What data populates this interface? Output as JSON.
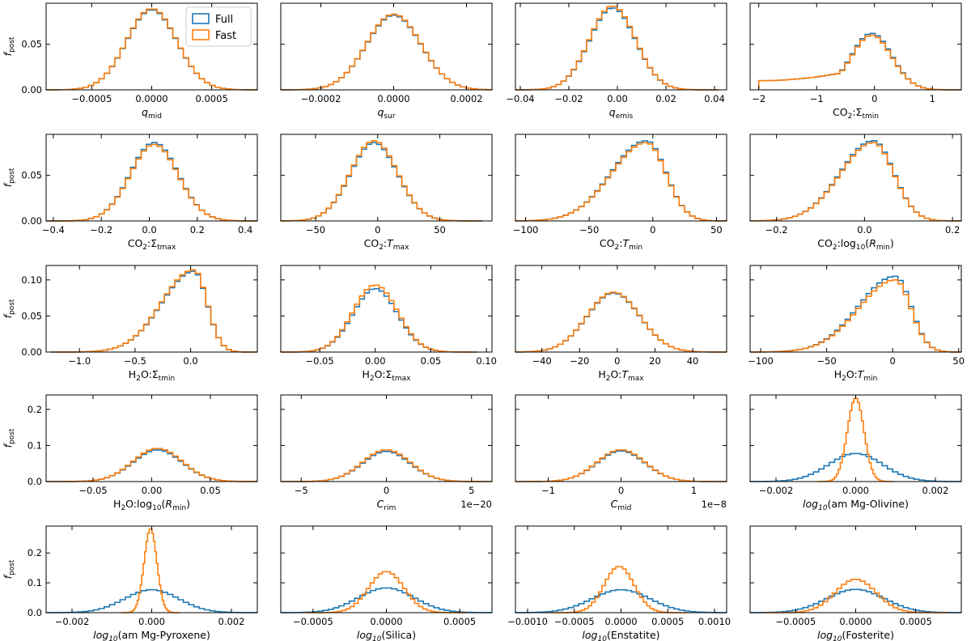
{
  "chart_data": {
    "type": "histogram-grid",
    "title": "",
    "ylabel": "f",
    "ylabel_sub": "post",
    "legend": {
      "placement": "top-right of first panel",
      "entries": [
        {
          "name": "Full",
          "color": "#1f77b4"
        },
        {
          "name": "Fast",
          "color": "#ff7f0e"
        }
      ]
    },
    "series_colors": {
      "Full": "#1f77b4",
      "Fast": "#ff7f0e"
    },
    "panels": [
      {
        "id": "qmid",
        "xlabel": {
          "base": "q",
          "italic": true,
          "sub": "mid"
        },
        "xlim": [
          -0.00088,
          0.00088
        ],
        "ylim": [
          0,
          0.095
        ],
        "xticks": [
          -0.0005,
          0,
          0.0005
        ],
        "xtick_labels": [
          "−0.0005",
          "0.0000",
          "0.0005"
        ],
        "yticks": [
          0,
          0.05
        ],
        "ytick_labels": [
          "0.00",
          "0.05"
        ],
        "series": {
          "Full": {
            "center": 0,
            "sigma": 0.00021,
            "peak": 0.088
          },
          "Fast": {
            "center": 0,
            "sigma": 0.00021,
            "peak": 0.089
          }
        }
      },
      {
        "id": "qsur",
        "xlabel": {
          "base": "q",
          "italic": true,
          "sub": "sur"
        },
        "xlim": [
          -0.00031,
          0.00027
        ],
        "ylim": [
          0,
          0.095
        ],
        "xticks": [
          -0.0002,
          0,
          0.0002
        ],
        "xtick_labels": [
          "−0.0002",
          "0.0000",
          "0.0002"
        ],
        "yticks": [],
        "ytick_labels": [],
        "series": {
          "Full": {
            "center": 0,
            "sigma": 7.5e-05,
            "peak": 0.082
          },
          "Fast": {
            "center": 0,
            "sigma": 7.5e-05,
            "peak": 0.083
          }
        }
      },
      {
        "id": "qemis",
        "xlabel": {
          "base": "q",
          "italic": true,
          "sub": "emis"
        },
        "xlim": [
          -0.042,
          0.045
        ],
        "ylim": [
          0,
          0.095
        ],
        "xticks": [
          -0.04,
          -0.02,
          0,
          0.02,
          0.04
        ],
        "xtick_labels": [
          "−0.04",
          "−0.02",
          "0.00",
          "0.02",
          "0.04"
        ],
        "yticks": [],
        "ytick_labels": [],
        "series": {
          "Full": {
            "center": -0.002,
            "sigma": 0.0095,
            "peak": 0.09
          },
          "Fast": {
            "center": -0.002,
            "sigma": 0.0095,
            "peak": 0.092
          }
        }
      },
      {
        "id": "co2_smin",
        "xlabel": {
          "base": "CO",
          "base_sub": "2",
          "rest": ":Σ",
          "sub": "tmin"
        },
        "xlim": [
          -2.15,
          1.5
        ],
        "ylim": [
          0,
          0.095
        ],
        "xticks": [
          -2,
          -1,
          0,
          1
        ],
        "xtick_labels": [
          "−2",
          "−1",
          "0",
          "1"
        ],
        "yticks": [],
        "ytick_labels": [],
        "series": {
          "Full": {
            "center": -0.05,
            "sigma": 0.35,
            "peak": 0.062,
            "floor": 0.01
          },
          "Fast": {
            "center": -0.05,
            "sigma": 0.35,
            "peak": 0.06,
            "floor": 0.01
          }
        }
      },
      {
        "id": "co2_smax",
        "xlabel": {
          "base": "CO",
          "base_sub": "2",
          "rest": ":Σ",
          "sub": "tmax"
        },
        "xlim": [
          -0.43,
          0.45
        ],
        "ylim": [
          0,
          0.095
        ],
        "xticks": [
          -0.4,
          -0.2,
          0,
          0.2,
          0.4
        ],
        "xtick_labels": [
          "−0.4",
          "−0.2",
          "0.0",
          "0.2",
          "0.4"
        ],
        "yticks": [
          0,
          0.05
        ],
        "ytick_labels": [
          "0.00",
          "0.05"
        ],
        "series": {
          "Full": {
            "center": 0.02,
            "sigma": 0.1,
            "peak": 0.086
          },
          "Fast": {
            "center": 0.02,
            "sigma": 0.1,
            "peak": 0.084
          }
        }
      },
      {
        "id": "co2_tmax",
        "xlabel": {
          "base": "CO",
          "base_sub": "2",
          "rest": ":",
          "rest_italic": "T",
          "sub": "max"
        },
        "xlim": [
          -78,
          92
        ],
        "ylim": [
          0,
          0.095
        ],
        "xticks": [
          -50,
          0,
          50
        ],
        "xtick_labels": [
          "−50",
          "0",
          "50"
        ],
        "yticks": [],
        "ytick_labels": [],
        "series": {
          "Full": {
            "center": -3,
            "sigma": 19,
            "peak": 0.086
          },
          "Fast": {
            "center": -3,
            "sigma": 19,
            "peak": 0.088
          }
        }
      },
      {
        "id": "co2_tmin",
        "xlabel": {
          "base": "CO",
          "base_sub": "2",
          "rest": ":",
          "rest_italic": "T",
          "sub": "min"
        },
        "xlim": [
          -108,
          58
        ],
        "ylim": [
          0,
          0.095
        ],
        "xticks": [
          -100,
          -50,
          0,
          50
        ],
        "xtick_labels": [
          "−100",
          "−50",
          "0",
          "50"
        ],
        "yticks": [],
        "ytick_labels": [],
        "series": {
          "Full": {
            "center": -5,
            "sigma": 18,
            "peak": 0.088,
            "skew": -0.6
          },
          "Fast": {
            "center": -5,
            "sigma": 18,
            "peak": 0.086,
            "skew": -0.6
          }
        }
      },
      {
        "id": "co2_rmin",
        "xlabel": {
          "base": "CO",
          "base_sub": "2",
          "rest": ":log",
          "rest_sub": "10",
          "rest2": "(",
          "rest2_italic": "R",
          "sub": "min",
          "tail": ")"
        },
        "xlim": [
          -0.26,
          0.22
        ],
        "ylim": [
          0,
          0.095
        ],
        "xticks": [
          -0.2,
          0,
          0.2
        ],
        "xtick_labels": [
          "−0.2",
          "0.0",
          "0.2"
        ],
        "yticks": [],
        "ytick_labels": [],
        "series": {
          "Full": {
            "center": 0.02,
            "sigma": 0.055,
            "peak": 0.088,
            "skew": -0.4
          },
          "Fast": {
            "center": 0.02,
            "sigma": 0.055,
            "peak": 0.086,
            "skew": -0.4
          }
        }
      },
      {
        "id": "h2o_smin",
        "xlabel": {
          "base": "H",
          "base_sub": "2",
          "base2": "O",
          "rest": ":Σ",
          "sub": "tmin"
        },
        "xlim": [
          -1.3,
          0.6
        ],
        "ylim": [
          0,
          0.12
        ],
        "xticks": [
          -1,
          -0.5,
          0
        ],
        "xtick_labels": [
          "−1.0",
          "−0.5",
          "0.0"
        ],
        "yticks": [
          0,
          0.05,
          0.1
        ],
        "ytick_labels": [
          "0.00",
          "0.05",
          "0.10"
        ],
        "series": {
          "Full": {
            "center": 0.03,
            "sigma": 0.14,
            "peak": 0.112,
            "skew": -1.2
          },
          "Fast": {
            "center": 0.03,
            "sigma": 0.14,
            "peak": 0.114,
            "skew": -1.2
          }
        }
      },
      {
        "id": "h2o_smax",
        "xlabel": {
          "base": "H",
          "base_sub": "2",
          "base2": "O",
          "rest": ":Σ",
          "sub": "tmax"
        },
        "xlim": [
          -0.085,
          0.105
        ],
        "ylim": [
          0,
          0.12
        ],
        "xticks": [
          -0.05,
          0,
          0.05,
          0.1
        ],
        "xtick_labels": [
          "−0.05",
          "0.00",
          "0.05",
          "0.10"
        ],
        "yticks": [],
        "ytick_labels": [],
        "series": {
          "Full": {
            "center": 0,
            "sigma": 0.02,
            "peak": 0.088
          },
          "Fast": {
            "center": 0,
            "sigma": 0.02,
            "peak": 0.093
          }
        }
      },
      {
        "id": "h2o_tmax",
        "xlabel": {
          "base": "H",
          "base_sub": "2",
          "base2": "O",
          "rest": ":",
          "rest_italic": "T",
          "sub": "max"
        },
        "xlim": [
          -54,
          58
        ],
        "ylim": [
          0,
          0.12
        ],
        "xticks": [
          -40,
          -20,
          0,
          20,
          40
        ],
        "xtick_labels": [
          "−40",
          "−20",
          "0",
          "20",
          "40"
        ],
        "yticks": [],
        "ytick_labels": [],
        "series": {
          "Full": {
            "center": -2,
            "sigma": 14,
            "peak": 0.082
          },
          "Fast": {
            "center": -2,
            "sigma": 14,
            "peak": 0.083
          }
        }
      },
      {
        "id": "h2o_tmin",
        "xlabel": {
          "base": "H",
          "base_sub": "2",
          "base2": "O",
          "rest": ":",
          "rest_italic": "T",
          "sub": "min"
        },
        "xlim": [
          -108,
          52
        ],
        "ylim": [
          0,
          0.12
        ],
        "xticks": [
          -100,
          -50,
          0,
          50
        ],
        "xtick_labels": [
          "−100",
          "−50",
          "0",
          "50"
        ],
        "yticks": [],
        "ytick_labels": [],
        "series": {
          "Full": {
            "center": 2,
            "sigma": 14,
            "peak": 0.105,
            "skew": -1.1
          },
          "Fast": {
            "center": 2,
            "sigma": 14,
            "peak": 0.1,
            "skew": -1.1
          }
        }
      },
      {
        "id": "h2o_rmin",
        "xlabel": {
          "base": "H",
          "base_sub": "2",
          "base2": "O",
          "rest": ":log",
          "rest_sub": "10",
          "rest2": "(",
          "rest2_italic": "R",
          "sub": "min",
          "tail": ")"
        },
        "xlim": [
          -0.09,
          0.09
        ],
        "ylim": [
          0,
          0.24
        ],
        "xticks": [
          -0.05,
          0,
          0.05
        ],
        "xtick_labels": [
          "−0.05",
          "0.00",
          "0.05"
        ],
        "yticks": [
          0,
          0.1,
          0.2
        ],
        "ytick_labels": [
          "0.0",
          "0.1",
          "0.2"
        ],
        "series": {
          "Full": {
            "center": 0.005,
            "sigma": 0.021,
            "peak": 0.088
          },
          "Fast": {
            "center": 0.005,
            "sigma": 0.021,
            "peak": 0.092
          }
        }
      },
      {
        "id": "crim",
        "xlabel": {
          "base": "C",
          "italic": true,
          "sub": "rim"
        },
        "offset_label": "1e−20",
        "xlim": [
          -6.2,
          6.2
        ],
        "ylim": [
          0,
          0.24
        ],
        "xticks": [
          -5,
          0,
          5
        ],
        "xtick_labels": [
          "−5",
          "0",
          "5"
        ],
        "yticks": [],
        "ytick_labels": [],
        "series": {
          "Full": {
            "center": 0,
            "sigma": 1.4,
            "peak": 0.084
          },
          "Fast": {
            "center": 0,
            "sigma": 1.4,
            "peak": 0.088
          }
        }
      },
      {
        "id": "cmid",
        "xlabel": {
          "base": "C",
          "italic": true,
          "sub": "mid"
        },
        "offset_label": "1e−8",
        "xlim": [
          -1.45,
          1.45
        ],
        "ylim": [
          0,
          0.24
        ],
        "xticks": [
          -1,
          0,
          1
        ],
        "xtick_labels": [
          "−1",
          "0",
          "1"
        ],
        "yticks": [],
        "ytick_labels": [],
        "series": {
          "Full": {
            "center": 0,
            "sigma": 0.33,
            "peak": 0.085
          },
          "Fast": {
            "center": 0,
            "sigma": 0.33,
            "peak": 0.088
          }
        }
      },
      {
        "id": "mg_olivine",
        "xlabel": {
          "log": true,
          "name": "am Mg-Olivine"
        },
        "xlim": [
          -0.00265,
          0.00265
        ],
        "ylim": [
          0,
          0.24
        ],
        "xticks": [
          -0.002,
          0,
          0.002
        ],
        "xtick_labels": [
          "−0.002",
          "0.000",
          "0.002"
        ],
        "yticks": [],
        "ytick_labels": [],
        "series": {
          "Full": {
            "center": 0,
            "sigma": 0.00068,
            "peak": 0.078
          },
          "Fast": {
            "center": 0,
            "sigma": 0.00021,
            "peak": 0.232
          }
        }
      },
      {
        "id": "mg_pyroxene",
        "xlabel": {
          "log": true,
          "name": "am Mg-Pyroxene"
        },
        "xlim": [
          -0.00265,
          0.00265
        ],
        "ylim": [
          0,
          0.29
        ],
        "xticks": [
          -0.002,
          0,
          0.002
        ],
        "xtick_labels": [
          "−0.002",
          "0.000",
          "0.002"
        ],
        "yticks": [
          0,
          0.1,
          0.2
        ],
        "ytick_labels": [
          "0.0",
          "0.1",
          "0.2"
        ],
        "series": {
          "Full": {
            "center": 0,
            "sigma": 0.00068,
            "peak": 0.077
          },
          "Fast": {
            "center": -3e-05,
            "sigma": 0.00016,
            "peak": 0.282
          }
        }
      },
      {
        "id": "silica",
        "xlabel": {
          "log": true,
          "name": "Silica"
        },
        "xlim": [
          -0.00072,
          0.00072
        ],
        "ylim": [
          0,
          0.29
        ],
        "xticks": [
          -0.0005,
          0,
          0.0005
        ],
        "xtick_labels": [
          "−0.0005",
          "0.0000",
          "0.0005"
        ],
        "yticks": [],
        "ytick_labels": [],
        "series": {
          "Full": {
            "center": 0,
            "sigma": 0.00019,
            "peak": 0.083
          },
          "Fast": {
            "center": 0,
            "sigma": 0.00012,
            "peak": 0.138
          }
        }
      },
      {
        "id": "enstatite",
        "xlabel": {
          "log": true,
          "name": "Enstatite"
        },
        "xlim": [
          -0.00113,
          0.00113
        ],
        "ylim": [
          0,
          0.29
        ],
        "xticks": [
          -0.001,
          -0.0005,
          0,
          0.0005,
          0.001
        ],
        "xtick_labels": [
          "−0.0010",
          "−0.0005",
          "0.0000",
          "0.0005",
          "0.0010"
        ],
        "yticks": [],
        "ytick_labels": [],
        "series": {
          "Full": {
            "center": 0,
            "sigma": 0.00031,
            "peak": 0.077
          },
          "Fast": {
            "center": -2e-05,
            "sigma": 0.00016,
            "peak": 0.155
          }
        }
      },
      {
        "id": "fosterite",
        "xlabel": {
          "log": true,
          "name": "Fosterite"
        },
        "xlim": [
          -0.00088,
          0.00088
        ],
        "ylim": [
          0,
          0.29
        ],
        "xticks": [
          -0.0005,
          0,
          0.0005
        ],
        "xtick_labels": [
          "−0.0005",
          "0.0000",
          "0.0005"
        ],
        "yticks": [],
        "ytick_labels": [],
        "series": {
          "Full": {
            "center": 0,
            "sigma": 0.00024,
            "peak": 0.078
          },
          "Fast": {
            "center": 0,
            "sigma": 0.00017,
            "peak": 0.112
          }
        }
      }
    ]
  }
}
